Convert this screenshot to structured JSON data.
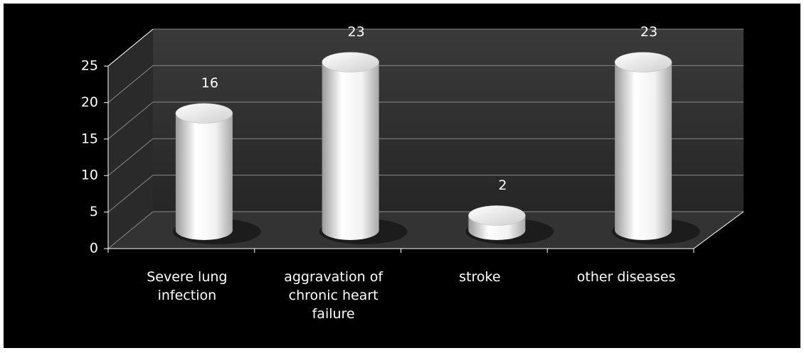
{
  "chart_data": {
    "type": "bar",
    "categories": [
      "Severe lung infection",
      "aggravation of chronic heart failure",
      "stroke",
      "other diseases"
    ],
    "values": [
      16,
      23,
      2,
      23
    ],
    "color": "#ffffff",
    "ylim": [
      0,
      25
    ],
    "yticks": [
      0,
      5,
      10,
      15,
      20,
      25
    ],
    "grid": true
  }
}
